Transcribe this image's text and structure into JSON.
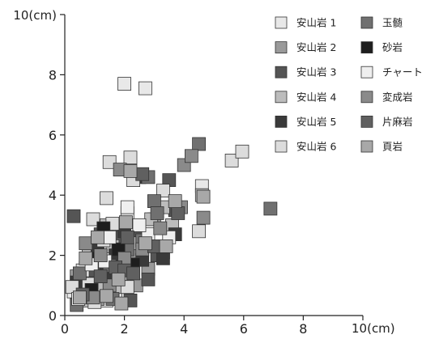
{
  "chart_data": {
    "type": "scatter",
    "title": "",
    "xlabel": "",
    "ylabel": "",
    "x_unit_label": "10(cm)",
    "y_unit_label": "10(cm)",
    "xlim": [
      0,
      10
    ],
    "ylim": [
      0,
      10
    ],
    "x_ticks": [
      {
        "value": 0,
        "label": "0"
      },
      {
        "value": 2,
        "label": "2"
      },
      {
        "value": 4,
        "label": "4"
      },
      {
        "value": 6,
        "label": "6"
      },
      {
        "value": 8,
        "label": "8"
      }
    ],
    "y_ticks": [
      {
        "value": 0,
        "label": "0"
      },
      {
        "value": 2,
        "label": "2"
      },
      {
        "value": 4,
        "label": "4"
      },
      {
        "value": 6,
        "label": "6"
      },
      {
        "value": 8,
        "label": "8"
      }
    ],
    "grid": false,
    "legend_position": "top-right",
    "series": [
      {
        "name": "安山岩 1",
        "color": "#e8e8e8",
        "points": [
          [
            2.0,
            7.7
          ],
          [
            2.7,
            7.55
          ],
          [
            0.5,
            0.9
          ],
          [
            0.9,
            1.3
          ],
          [
            1.4,
            0.5
          ],
          [
            0.7,
            1.6
          ],
          [
            1.7,
            0.7
          ],
          [
            1.1,
            2.5
          ],
          [
            2.1,
            3.4
          ],
          [
            4.6,
            4.3
          ],
          [
            0.3,
            0.8
          ],
          [
            1.25,
            1.55
          ]
        ]
      },
      {
        "name": "安山岩 2",
        "color": "#9a9a9a",
        "points": [
          [
            0.9,
            2.2
          ],
          [
            1.5,
            1.1
          ],
          [
            2.3,
            2.1
          ],
          [
            3.3,
            2.1
          ],
          [
            1.1,
            0.55
          ],
          [
            0.6,
            1.0
          ],
          [
            1.8,
            1.75
          ],
          [
            2.8,
            1.55
          ],
          [
            3.0,
            3.2
          ],
          [
            0.4,
            1.3
          ],
          [
            1.6,
            0.8
          ],
          [
            2.4,
            1.0
          ]
        ]
      },
      {
        "name": "安山岩 3",
        "color": "#555555",
        "points": [
          [
            0.3,
            3.3
          ],
          [
            1.2,
            2.7
          ],
          [
            1.6,
            1.3
          ],
          [
            2.5,
            2.7
          ],
          [
            3.1,
            2.0
          ],
          [
            3.5,
            4.5
          ],
          [
            0.7,
            0.9
          ],
          [
            1.9,
            2.6
          ],
          [
            2.8,
            1.2
          ],
          [
            1.0,
            1.5
          ],
          [
            2.2,
            0.5
          ],
          [
            3.7,
            3.5
          ]
        ]
      },
      {
        "name": "安山岩 4",
        "color": "#bcbcbc",
        "points": [
          [
            1.6,
            2.3
          ],
          [
            2.0,
            1.3
          ],
          [
            2.9,
            3.2
          ],
          [
            3.6,
            3.0
          ],
          [
            0.8,
            2.0
          ],
          [
            1.4,
            3.0
          ],
          [
            2.4,
            2.4
          ],
          [
            0.6,
            0.5
          ],
          [
            1.9,
            0.95
          ],
          [
            3.3,
            3.6
          ],
          [
            4.6,
            4.0
          ],
          [
            1.2,
            1.0
          ]
        ]
      },
      {
        "name": "安山岩 5",
        "color": "#3a3a3a",
        "points": [
          [
            1.7,
            2.0
          ],
          [
            3.3,
            1.9
          ],
          [
            2.5,
            4.6
          ],
          [
            1.4,
            1.4
          ],
          [
            0.8,
            0.7
          ],
          [
            2.0,
            2.8
          ],
          [
            3.7,
            2.7
          ],
          [
            1.1,
            2.3
          ],
          [
            2.6,
            1.85
          ],
          [
            0.4,
            1.1
          ]
        ]
      },
      {
        "name": "安山岩 6",
        "color": "#dcdcdc",
        "points": [
          [
            1.5,
            5.1
          ],
          [
            2.2,
            5.25
          ],
          [
            5.6,
            5.15
          ],
          [
            5.95,
            5.45
          ],
          [
            0.95,
            3.2
          ],
          [
            1.4,
            3.9
          ],
          [
            2.3,
            4.5
          ],
          [
            1.6,
            3.05
          ],
          [
            0.6,
            1.5
          ],
          [
            1.0,
            0.45
          ],
          [
            2.1,
            0.95
          ],
          [
            0.8,
            1.05
          ],
          [
            3.3,
            4.15
          ],
          [
            4.5,
            2.8
          ],
          [
            0.25,
            0.95
          ],
          [
            1.3,
            2.5
          ]
        ]
      },
      {
        "name": "玉髄",
        "color": "#707070",
        "points": [
          [
            4.5,
            5.7
          ],
          [
            6.9,
            3.55
          ],
          [
            2.8,
            4.6
          ],
          [
            3.0,
            3.8
          ],
          [
            0.5,
            1.4
          ],
          [
            1.6,
            0.55
          ],
          [
            2.6,
            2.5
          ],
          [
            3.1,
            3.4
          ],
          [
            0.4,
            0.35
          ],
          [
            1.5,
            1.65
          ],
          [
            2.1,
            2.2
          ]
        ]
      },
      {
        "name": "砂岩",
        "color": "#1e1e1e",
        "points": [
          [
            1.3,
            2.9
          ],
          [
            2.3,
            1.7
          ],
          [
            1.05,
            1.9
          ],
          [
            1.8,
            2.2
          ],
          [
            0.9,
            0.85
          ]
        ]
      },
      {
        "name": "チャート",
        "color": "#efefef",
        "points": [
          [
            2.1,
            3.6
          ],
          [
            3.5,
            2.6
          ],
          [
            1.5,
            2.6
          ],
          [
            2.8,
            2.7
          ],
          [
            0.9,
            1.7
          ],
          [
            0.45,
            0.55
          ],
          [
            1.35,
            1.8
          ],
          [
            2.5,
            3.0
          ]
        ]
      },
      {
        "name": "変成岩",
        "color": "#8a8a8a",
        "points": [
          [
            1.85,
            4.85
          ],
          [
            4.0,
            5.0
          ],
          [
            4.25,
            5.3
          ],
          [
            4.65,
            3.25
          ],
          [
            1.2,
            2.0
          ],
          [
            2.0,
            1.9
          ],
          [
            2.6,
            2.2
          ],
          [
            3.9,
            3.6
          ],
          [
            0.7,
            2.4
          ],
          [
            1.5,
            1.0
          ],
          [
            3.2,
            2.9
          ],
          [
            0.95,
            0.6
          ]
        ]
      },
      {
        "name": "片麻岩",
        "color": "#606060",
        "points": [
          [
            2.6,
            4.7
          ],
          [
            3.8,
            3.4
          ],
          [
            1.7,
            1.6
          ],
          [
            2.1,
            2.6
          ],
          [
            3.0,
            2.3
          ],
          [
            2.0,
            1.5
          ],
          [
            1.2,
            1.3
          ],
          [
            0.6,
            0.7
          ],
          [
            2.3,
            1.4
          ]
        ]
      },
      {
        "name": "頁岩",
        "color": "#a8a8a8",
        "points": [
          [
            2.05,
            3.1
          ],
          [
            2.2,
            4.8
          ],
          [
            3.7,
            3.8
          ],
          [
            1.8,
            1.2
          ],
          [
            1.1,
            2.6
          ],
          [
            2.7,
            2.4
          ],
          [
            0.7,
            1.9
          ],
          [
            1.4,
            0.65
          ],
          [
            3.4,
            2.3
          ],
          [
            4.65,
            3.95
          ],
          [
            0.5,
            0.6
          ],
          [
            1.9,
            0.4
          ]
        ]
      }
    ]
  }
}
